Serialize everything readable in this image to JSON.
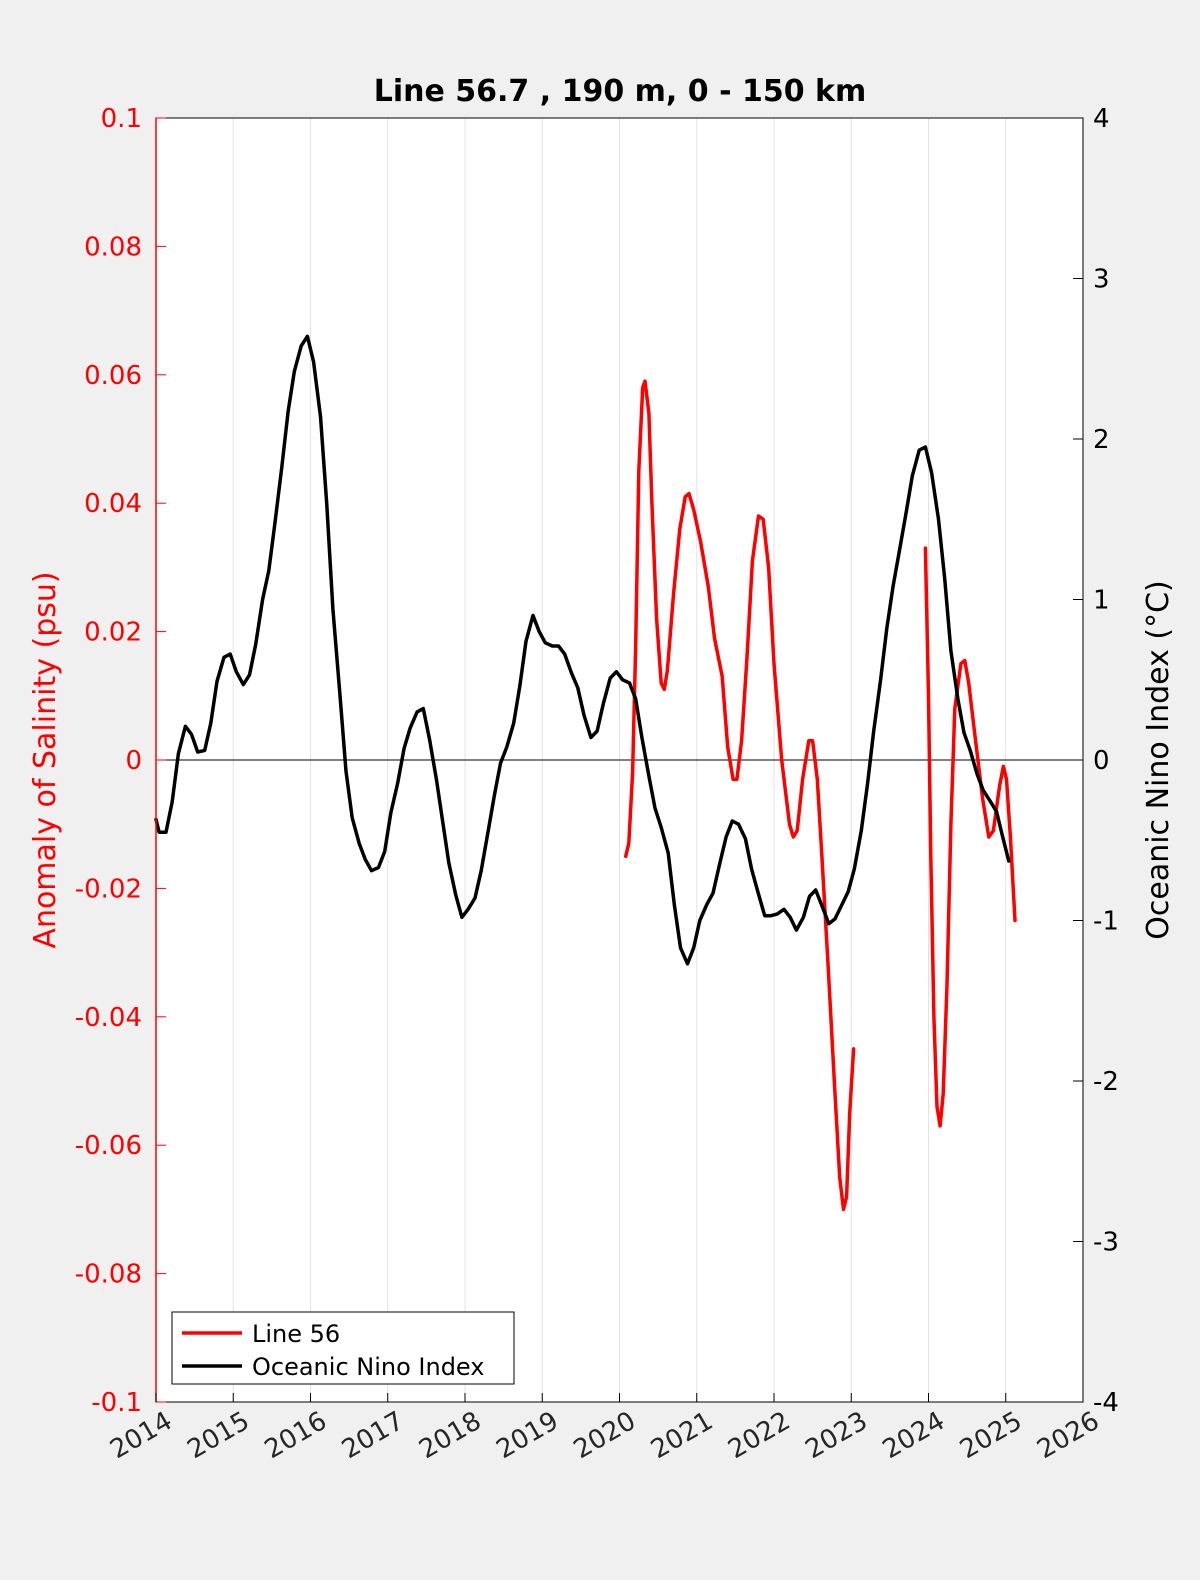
{
  "chart_data": {
    "type": "line",
    "title": "Line 56.7 , 190 m, 0 - 150 km",
    "xlabel": "",
    "ylabel_left": "Anomaly of Salinity (psu)",
    "ylabel_right": "Oceanic Nino Index (°C)",
    "x_ticks": [
      "2014",
      "2015",
      "2016",
      "2017",
      "2018",
      "2019",
      "2020",
      "2021",
      "2022",
      "2023",
      "2024",
      "2025",
      "2026"
    ],
    "xlim": [
      2014,
      2026
    ],
    "ylim_left": [
      -0.1,
      0.1
    ],
    "ylim_right": [
      -4,
      4
    ],
    "y_ticks_left": [
      "0.1",
      "0.08",
      "0.06",
      "0.04",
      "0.02",
      "0",
      "-0.02",
      "-0.04",
      "-0.06",
      "-0.08",
      "-0.1"
    ],
    "y_ticks_right": [
      "4",
      "3",
      "2",
      "1",
      "0",
      "-1",
      "-2",
      "-3",
      "-4"
    ],
    "grid": "vertical",
    "legend_position": "bottom-left",
    "colors": {
      "line56": "#ff0000",
      "oni": "#000000",
      "left_axis": "#ff0000",
      "right_axis": "#000000"
    },
    "series": [
      {
        "name": "Line 56",
        "axis": "left",
        "segments": [
          [
            [
              2020.08,
              -0.015
            ],
            [
              2020.12,
              -0.013
            ],
            [
              2020.17,
              -0.002
            ],
            [
              2020.21,
              0.018
            ],
            [
              2020.25,
              0.045
            ],
            [
              2020.3,
              0.058
            ],
            [
              2020.33,
              0.059
            ],
            [
              2020.38,
              0.054
            ],
            [
              2020.42,
              0.04
            ],
            [
              2020.48,
              0.022
            ],
            [
              2020.54,
              0.012
            ],
            [
              2020.58,
              0.011
            ],
            [
              2020.62,
              0.014
            ],
            [
              2020.7,
              0.026
            ],
            [
              2020.78,
              0.036
            ],
            [
              2020.85,
              0.041
            ],
            [
              2020.9,
              0.0415
            ],
            [
              2020.96,
              0.039
            ],
            [
              2021.05,
              0.034
            ],
            [
              2021.15,
              0.027
            ],
            [
              2021.23,
              0.019
            ],
            [
              2021.33,
              0.013
            ],
            [
              2021.4,
              0.002
            ],
            [
              2021.47,
              -0.003
            ],
            [
              2021.52,
              -0.003
            ],
            [
              2021.58,
              0.003
            ],
            [
              2021.65,
              0.016
            ],
            [
              2021.72,
              0.031
            ],
            [
              2021.8,
              0.038
            ],
            [
              2021.86,
              0.0375
            ],
            [
              2021.93,
              0.03
            ],
            [
              2022.0,
              0.015
            ],
            [
              2022.1,
              0.0
            ],
            [
              2022.2,
              -0.01
            ],
            [
              2022.25,
              -0.012
            ],
            [
              2022.3,
              -0.011
            ],
            [
              2022.37,
              -0.003
            ],
            [
              2022.45,
              0.003
            ],
            [
              2022.5,
              0.003
            ],
            [
              2022.56,
              -0.003
            ],
            [
              2022.62,
              -0.015
            ],
            [
              2022.7,
              -0.032
            ],
            [
              2022.78,
              -0.05
            ],
            [
              2022.85,
              -0.065
            ],
            [
              2022.9,
              -0.07
            ],
            [
              2022.94,
              -0.068
            ],
            [
              2022.98,
              -0.055
            ],
            [
              2023.03,
              -0.045
            ]
          ],
          [
            [
              2023.96,
              0.033
            ],
            [
              2024.0,
              0.01
            ],
            [
              2024.03,
              -0.015
            ],
            [
              2024.07,
              -0.04
            ],
            [
              2024.11,
              -0.054
            ],
            [
              2024.15,
              -0.057
            ],
            [
              2024.19,
              -0.052
            ],
            [
              2024.24,
              -0.035
            ],
            [
              2024.29,
              -0.01
            ],
            [
              2024.34,
              0.008
            ],
            [
              2024.42,
              0.015
            ],
            [
              2024.47,
              0.0155
            ],
            [
              2024.52,
              0.012
            ],
            [
              2024.6,
              0.004
            ],
            [
              2024.7,
              -0.006
            ],
            [
              2024.78,
              -0.012
            ],
            [
              2024.84,
              -0.011
            ],
            [
              2024.92,
              -0.004
            ],
            [
              2024.97,
              -0.001
            ],
            [
              2025.01,
              -0.003
            ],
            [
              2025.06,
              -0.012
            ],
            [
              2025.12,
              -0.025
            ]
          ]
        ]
      },
      {
        "name": "Oceanic Nino Index",
        "axis": "right",
        "segments": [
          [
            [
              2014.0,
              -0.37
            ],
            [
              2014.04,
              -0.45
            ],
            [
              2014.13,
              -0.45
            ],
            [
              2014.21,
              -0.26
            ],
            [
              2014.29,
              0.04
            ],
            [
              2014.38,
              0.21
            ],
            [
              2014.46,
              0.16
            ],
            [
              2014.54,
              0.05
            ],
            [
              2014.63,
              0.06
            ],
            [
              2014.71,
              0.23
            ],
            [
              2014.79,
              0.49
            ],
            [
              2014.88,
              0.64
            ],
            [
              2014.96,
              0.66
            ],
            [
              2015.04,
              0.55
            ],
            [
              2015.13,
              0.47
            ],
            [
              2015.21,
              0.53
            ],
            [
              2015.29,
              0.72
            ],
            [
              2015.38,
              1.0
            ],
            [
              2015.46,
              1.18
            ],
            [
              2015.54,
              1.48
            ],
            [
              2015.63,
              1.83
            ],
            [
              2015.71,
              2.17
            ],
            [
              2015.79,
              2.42
            ],
            [
              2015.88,
              2.58
            ],
            [
              2015.96,
              2.64
            ],
            [
              2016.04,
              2.48
            ],
            [
              2016.13,
              2.14
            ],
            [
              2016.21,
              1.6
            ],
            [
              2016.29,
              0.94
            ],
            [
              2016.38,
              0.41
            ],
            [
              2016.46,
              -0.07
            ],
            [
              2016.54,
              -0.36
            ],
            [
              2016.63,
              -0.52
            ],
            [
              2016.71,
              -0.62
            ],
            [
              2016.79,
              -0.69
            ],
            [
              2016.88,
              -0.67
            ],
            [
              2016.96,
              -0.57
            ],
            [
              2017.04,
              -0.33
            ],
            [
              2017.13,
              -0.14
            ],
            [
              2017.21,
              0.07
            ],
            [
              2017.29,
              0.2
            ],
            [
              2017.38,
              0.3
            ],
            [
              2017.46,
              0.32
            ],
            [
              2017.54,
              0.13
            ],
            [
              2017.63,
              -0.12
            ],
            [
              2017.71,
              -0.38
            ],
            [
              2017.79,
              -0.64
            ],
            [
              2017.88,
              -0.84
            ],
            [
              2017.96,
              -0.98
            ],
            [
              2018.04,
              -0.93
            ],
            [
              2018.13,
              -0.86
            ],
            [
              2018.21,
              -0.69
            ],
            [
              2018.29,
              -0.47
            ],
            [
              2018.38,
              -0.22
            ],
            [
              2018.46,
              -0.02
            ],
            [
              2018.54,
              0.08
            ],
            [
              2018.63,
              0.23
            ],
            [
              2018.71,
              0.46
            ],
            [
              2018.79,
              0.74
            ],
            [
              2018.88,
              0.9
            ],
            [
              2018.96,
              0.8
            ],
            [
              2019.04,
              0.73
            ],
            [
              2019.13,
              0.71
            ],
            [
              2019.21,
              0.71
            ],
            [
              2019.29,
              0.66
            ],
            [
              2019.38,
              0.54
            ],
            [
              2019.46,
              0.45
            ],
            [
              2019.54,
              0.28
            ],
            [
              2019.63,
              0.14
            ],
            [
              2019.71,
              0.18
            ],
            [
              2019.79,
              0.35
            ],
            [
              2019.88,
              0.51
            ],
            [
              2019.96,
              0.55
            ],
            [
              2020.04,
              0.5
            ],
            [
              2020.13,
              0.48
            ],
            [
              2020.21,
              0.38
            ],
            [
              2020.29,
              0.14
            ],
            [
              2020.38,
              -0.1
            ],
            [
              2020.46,
              -0.3
            ],
            [
              2020.54,
              -0.42
            ],
            [
              2020.63,
              -0.58
            ],
            [
              2020.71,
              -0.9
            ],
            [
              2020.79,
              -1.17
            ],
            [
              2020.88,
              -1.27
            ],
            [
              2020.96,
              -1.17
            ],
            [
              2021.04,
              -1.0
            ],
            [
              2021.13,
              -0.9
            ],
            [
              2021.21,
              -0.83
            ],
            [
              2021.29,
              -0.66
            ],
            [
              2021.38,
              -0.48
            ],
            [
              2021.46,
              -0.38
            ],
            [
              2021.54,
              -0.4
            ],
            [
              2021.63,
              -0.49
            ],
            [
              2021.71,
              -0.68
            ],
            [
              2021.79,
              -0.82
            ],
            [
              2021.88,
              -0.97
            ],
            [
              2021.96,
              -0.97
            ],
            [
              2022.04,
              -0.96
            ],
            [
              2022.13,
              -0.93
            ],
            [
              2022.21,
              -0.98
            ],
            [
              2022.29,
              -1.06
            ],
            [
              2022.38,
              -0.98
            ],
            [
              2022.46,
              -0.85
            ],
            [
              2022.54,
              -0.81
            ],
            [
              2022.63,
              -0.92
            ],
            [
              2022.71,
              -1.02
            ],
            [
              2022.79,
              -0.99
            ],
            [
              2022.88,
              -0.9
            ],
            [
              2022.96,
              -0.82
            ],
            [
              2023.04,
              -0.68
            ],
            [
              2023.13,
              -0.44
            ],
            [
              2023.21,
              -0.15
            ],
            [
              2023.29,
              0.18
            ],
            [
              2023.38,
              0.5
            ],
            [
              2023.46,
              0.82
            ],
            [
              2023.54,
              1.08
            ],
            [
              2023.63,
              1.32
            ],
            [
              2023.71,
              1.54
            ],
            [
              2023.79,
              1.77
            ],
            [
              2023.88,
              1.93
            ],
            [
              2023.96,
              1.95
            ],
            [
              2024.04,
              1.79
            ],
            [
              2024.13,
              1.5
            ],
            [
              2024.21,
              1.13
            ],
            [
              2024.29,
              0.68
            ],
            [
              2024.38,
              0.38
            ],
            [
              2024.46,
              0.17
            ],
            [
              2024.54,
              0.06
            ],
            [
              2024.63,
              -0.09
            ],
            [
              2024.71,
              -0.19
            ],
            [
              2024.79,
              -0.25
            ],
            [
              2024.88,
              -0.32
            ],
            [
              2024.96,
              -0.48
            ],
            [
              2025.04,
              -0.63
            ]
          ]
        ]
      }
    ]
  }
}
